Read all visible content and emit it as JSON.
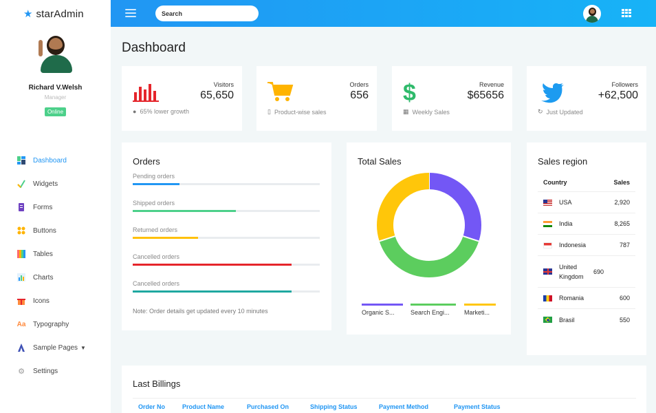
{
  "brand": {
    "name": "starAdmin"
  },
  "profile": {
    "name": "Richard V.Welsh",
    "role": "Manager",
    "status": "Online"
  },
  "nav": [
    {
      "label": "Dashboard",
      "icon": "dashboard-icon",
      "active": true
    },
    {
      "label": "Widgets",
      "icon": "widgets-icon"
    },
    {
      "label": "Forms",
      "icon": "forms-icon"
    },
    {
      "label": "Buttons",
      "icon": "buttons-icon"
    },
    {
      "label": "Tables",
      "icon": "tables-icon"
    },
    {
      "label": "Charts",
      "icon": "charts-icon"
    },
    {
      "label": "Icons",
      "icon": "gift-icon"
    },
    {
      "label": "Typography",
      "icon": "typography-icon"
    },
    {
      "label": "Sample Pages",
      "icon": "sample-pages-icon",
      "caret": true
    },
    {
      "label": "Settings",
      "icon": "gear-icon"
    }
  ],
  "topbar": {
    "search_placeholder": "Search"
  },
  "page": {
    "title": "Dashboard"
  },
  "stats": [
    {
      "label": "Visitors",
      "value": "65,650",
      "footer": "65% lower growth",
      "icon": "bar-chart-icon",
      "footer_icon": "alert-icon",
      "color": "#e5252b"
    },
    {
      "label": "Orders",
      "value": "656",
      "footer": "Product-wise sales",
      "icon": "cart-icon",
      "footer_icon": "bookmark-icon",
      "color": "#ffb400"
    },
    {
      "label": "Revenue",
      "value": "$65656",
      "footer": "Weekly Sales",
      "icon": "dollar-icon",
      "footer_icon": "calendar-icon",
      "color": "#2fba6b"
    },
    {
      "label": "Followers",
      "value": "+62,500",
      "footer": "Just Updated",
      "icon": "twitter-icon",
      "footer_icon": "refresh-icon",
      "color": "#1d9bf0"
    }
  ],
  "orders": {
    "title": "Orders",
    "rows": [
      {
        "label": "Pending orders",
        "value": 25,
        "color": "#2196f3"
      },
      {
        "label": "Shipped orders",
        "value": 55,
        "color": "#4cd08a"
      },
      {
        "label": "Returned orders",
        "value": 35,
        "color": "#ffc107"
      },
      {
        "label": "Cancelled orders",
        "value": 85,
        "color": "#e5252b"
      },
      {
        "label": "Cancelled orders",
        "value": 85,
        "color": "#1ea8a0"
      }
    ],
    "note": "Note: Order details get updated every 10 minutes"
  },
  "total_sales": {
    "title": "Total Sales",
    "series": [
      {
        "name": "Organic S...",
        "value": 30,
        "color": "#7357f5"
      },
      {
        "name": "Search Engi...",
        "value": 40,
        "color": "#5ccd5e"
      },
      {
        "name": "Marketi...",
        "value": 30,
        "color": "#ffc60a"
      }
    ]
  },
  "sales_region": {
    "title": "Sales region",
    "col_country": "Country",
    "col_sales": "Sales",
    "rows": [
      {
        "country": "USA",
        "sales": "2,920",
        "flag": "us"
      },
      {
        "country": "India",
        "sales": "8,265",
        "flag": "in"
      },
      {
        "country": "Indonesia",
        "sales": "787",
        "flag": "id"
      },
      {
        "country": "United Kingdom",
        "sales": "690",
        "flag": "gb"
      },
      {
        "country": "Romania",
        "sales": "600",
        "flag": "ro"
      },
      {
        "country": "Brasil",
        "sales": "550",
        "flag": "br"
      }
    ]
  },
  "billings": {
    "title": "Last Billings",
    "columns": [
      "Order No",
      "Product Name",
      "Purchased On",
      "Shipping Status",
      "Payment Method",
      "Payment Status"
    ]
  },
  "chart_data": {
    "type": "pie",
    "title": "Total Sales",
    "categories": [
      "Organic S...",
      "Search Engi...",
      "Marketi..."
    ],
    "values": [
      30,
      40,
      30
    ]
  }
}
